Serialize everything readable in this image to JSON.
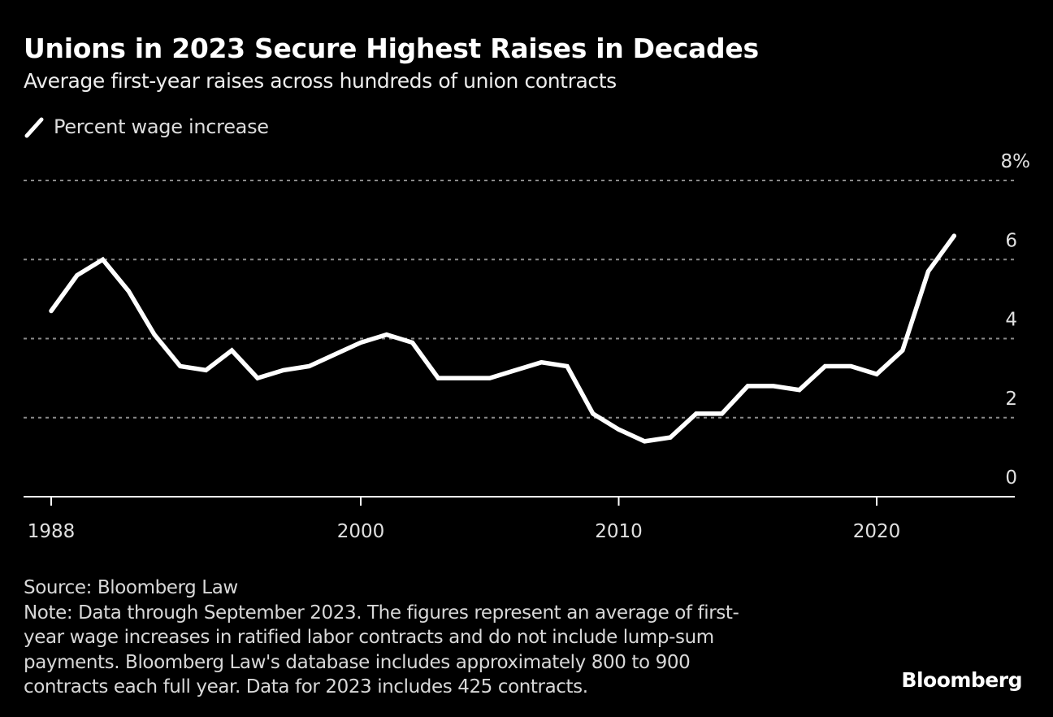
{
  "chart_data": {
    "type": "line",
    "title": "Unions in 2023 Secure Highest Raises in Decades",
    "subtitle": "Average first-year raises across hundreds of union contracts",
    "xlabel": "",
    "ylabel": "",
    "legend": {
      "position": "top-left",
      "entries": [
        "Percent wage increase"
      ]
    },
    "ylim": [
      0,
      8
    ],
    "xlim": [
      1987,
      2025.5
    ],
    "yticks": [
      {
        "value": 0,
        "label": "0"
      },
      {
        "value": 2,
        "label": "2"
      },
      {
        "value": 4,
        "label": "4"
      },
      {
        "value": 6,
        "label": "6"
      },
      {
        "value": 8,
        "label": "8%"
      }
    ],
    "xticks": [
      {
        "value": 1988,
        "label": "1988"
      },
      {
        "value": 2000,
        "label": "2000"
      },
      {
        "value": 2010,
        "label": "2010"
      },
      {
        "value": 2020,
        "label": "2020"
      }
    ],
    "grid": true,
    "series": [
      {
        "name": "Percent wage increase",
        "color": "#ffffff",
        "x": [
          1988,
          1989,
          1990,
          1991,
          1992,
          1993,
          1994,
          1995,
          1996,
          1997,
          1998,
          1999,
          2000,
          2001,
          2002,
          2003,
          2004,
          2005,
          2006,
          2007,
          2008,
          2009,
          2010,
          2011,
          2012,
          2013,
          2014,
          2015,
          2016,
          2017,
          2018,
          2019,
          2020,
          2021,
          2022,
          2023
        ],
        "values": [
          4.7,
          5.6,
          6.0,
          5.2,
          4.1,
          3.3,
          3.2,
          3.7,
          3.0,
          3.2,
          3.3,
          3.6,
          3.9,
          4.1,
          3.9,
          3.0,
          3.0,
          3.0,
          3.2,
          3.4,
          3.3,
          2.1,
          1.7,
          1.4,
          1.5,
          2.1,
          2.1,
          2.8,
          2.8,
          2.7,
          3.3,
          3.3,
          3.1,
          3.7,
          5.7,
          6.6
        ]
      }
    ]
  },
  "footer": {
    "source": "Source: Bloomberg Law",
    "note_lines": [
      "Note: Data through September 2023. The figures represent an average of first-",
      "year wage increases in ratified labor contracts and do not include lump-sum",
      "payments. Bloomberg Law's database includes approximately 800 to 900",
      "contracts each full year. Data for 2023 includes 425 contracts."
    ],
    "brand": "Bloomberg"
  },
  "colors": {
    "background": "#000000",
    "line": "#ffffff",
    "grid": "#8a8a8a",
    "axis": "#ffffff",
    "text": "#e0e0e0"
  }
}
